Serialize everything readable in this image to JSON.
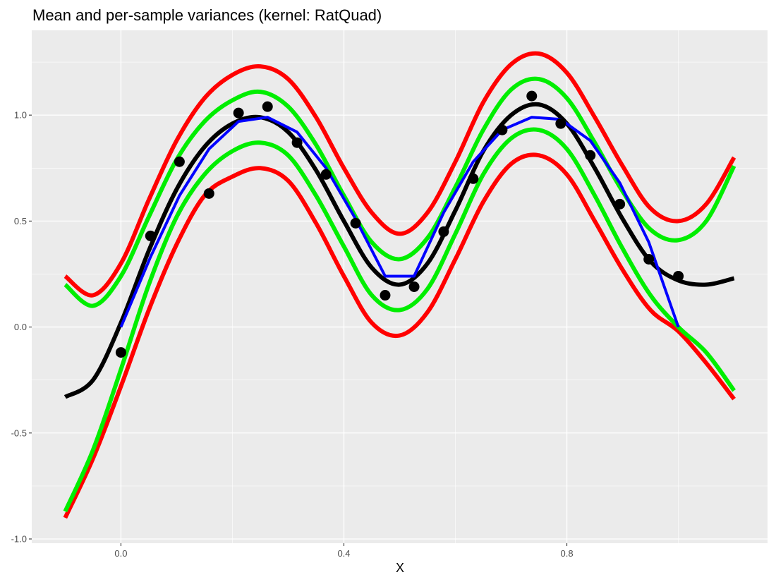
{
  "chart_data": {
    "type": "line",
    "title": "Mean and per-sample variances (kernel: RatQuad)",
    "xlabel": "X",
    "ylabel": "",
    "xlim": [
      -0.16,
      1.16
    ],
    "ylim": [
      -1.02,
      1.4
    ],
    "x_ticks": [
      0.0,
      0.4,
      0.8
    ],
    "x_tick_labels": [
      "0.0",
      "0.4",
      "0.8"
    ],
    "y_ticks": [
      -1.0,
      -0.5,
      0.0,
      0.5,
      1.0
    ],
    "y_tick_labels": [
      "-1.0",
      "-0.5",
      "0.0",
      "0.5",
      "1.0"
    ],
    "background": "#ebebeb",
    "grid": true,
    "series": [
      {
        "color": "#ff0000",
        "x": [
          -0.1,
          -0.05,
          0.0,
          0.05,
          0.1,
          0.15,
          0.2,
          0.25,
          0.3,
          0.35,
          0.4,
          0.45,
          0.5,
          0.55,
          0.6,
          0.65,
          0.7,
          0.75,
          0.8,
          0.85,
          0.9,
          0.95,
          1.0,
          1.05,
          1.1
        ],
        "y": [
          0.24,
          0.15,
          0.3,
          0.6,
          0.88,
          1.08,
          1.19,
          1.23,
          1.17,
          0.99,
          0.75,
          0.54,
          0.44,
          0.54,
          0.78,
          1.06,
          1.24,
          1.29,
          1.2,
          0.99,
          0.76,
          0.56,
          0.5,
          0.58,
          0.8
        ]
      },
      {
        "color": "#ff0000",
        "x": [
          -0.1,
          -0.05,
          0.0,
          0.05,
          0.1,
          0.15,
          0.2,
          0.25,
          0.3,
          0.35,
          0.4,
          0.45,
          0.5,
          0.55,
          0.6,
          0.65,
          0.7,
          0.75,
          0.8,
          0.85,
          0.9,
          0.95,
          1.0,
          1.05,
          1.1
        ],
        "y": [
          -0.9,
          -0.62,
          -0.28,
          0.08,
          0.39,
          0.62,
          0.71,
          0.75,
          0.69,
          0.49,
          0.24,
          0.02,
          -0.04,
          0.07,
          0.32,
          0.59,
          0.77,
          0.81,
          0.72,
          0.5,
          0.27,
          0.08,
          -0.02,
          -0.17,
          -0.34
        ]
      },
      {
        "color": "#00ee00",
        "x": [
          -0.1,
          -0.05,
          0.0,
          0.05,
          0.1,
          0.15,
          0.2,
          0.25,
          0.3,
          0.35,
          0.4,
          0.45,
          0.5,
          0.55,
          0.6,
          0.65,
          0.7,
          0.75,
          0.8,
          0.85,
          0.9,
          0.95,
          1.0,
          1.05,
          1.1
        ],
        "y": [
          0.2,
          0.1,
          0.24,
          0.52,
          0.79,
          0.97,
          1.07,
          1.11,
          1.04,
          0.86,
          0.62,
          0.4,
          0.32,
          0.42,
          0.66,
          0.93,
          1.12,
          1.17,
          1.08,
          0.87,
          0.64,
          0.46,
          0.41,
          0.5,
          0.76
        ]
      },
      {
        "color": "#00ee00",
        "x": [
          -0.1,
          -0.05,
          0.0,
          0.05,
          0.1,
          0.15,
          0.2,
          0.25,
          0.3,
          0.35,
          0.4,
          0.45,
          0.5,
          0.55,
          0.6,
          0.65,
          0.7,
          0.75,
          0.8,
          0.85,
          0.9,
          0.95,
          1.0,
          1.05,
          1.1
        ],
        "y": [
          -0.87,
          -0.58,
          -0.2,
          0.2,
          0.52,
          0.72,
          0.83,
          0.87,
          0.81,
          0.62,
          0.38,
          0.15,
          0.08,
          0.18,
          0.44,
          0.72,
          0.89,
          0.93,
          0.84,
          0.62,
          0.37,
          0.15,
          0.0,
          -0.12,
          -0.3
        ]
      },
      {
        "color": "#000000",
        "x": [
          -0.1,
          -0.05,
          0.0,
          0.05,
          0.1,
          0.15,
          0.2,
          0.25,
          0.3,
          0.35,
          0.4,
          0.45,
          0.5,
          0.55,
          0.6,
          0.65,
          0.7,
          0.75,
          0.8,
          0.85,
          0.9,
          0.95,
          1.0,
          1.05,
          1.1
        ],
        "y": [
          -0.33,
          -0.25,
          0.02,
          0.36,
          0.65,
          0.85,
          0.96,
          0.99,
          0.92,
          0.74,
          0.5,
          0.28,
          0.2,
          0.3,
          0.55,
          0.83,
          1.0,
          1.05,
          0.96,
          0.75,
          0.51,
          0.31,
          0.22,
          0.2,
          0.23
        ]
      },
      {
        "color": "#0000ff",
        "x": [
          0.0,
          0.053,
          0.105,
          0.158,
          0.211,
          0.263,
          0.316,
          0.368,
          0.421,
          0.474,
          0.526,
          0.579,
          0.632,
          0.684,
          0.737,
          0.789,
          0.842,
          0.895,
          0.947,
          1.0
        ],
        "y": [
          0.0,
          0.33,
          0.62,
          0.84,
          0.97,
          0.99,
          0.92,
          0.75,
          0.51,
          0.24,
          0.24,
          0.54,
          0.78,
          0.93,
          0.99,
          0.98,
          0.88,
          0.68,
          0.4,
          0.0
        ]
      }
    ],
    "points": {
      "color": "#000000",
      "x": [
        0.0,
        0.053,
        0.105,
        0.158,
        0.211,
        0.263,
        0.316,
        0.368,
        0.421,
        0.474,
        0.526,
        0.579,
        0.632,
        0.684,
        0.737,
        0.789,
        0.842,
        0.895,
        0.947,
        1.0
      ],
      "y": [
        -0.12,
        0.43,
        0.78,
        0.63,
        1.01,
        1.04,
        0.87,
        0.72,
        0.49,
        0.15,
        0.19,
        0.45,
        0.7,
        0.93,
        1.09,
        0.96,
        0.81,
        0.58,
        0.32,
        0.24
      ]
    }
  }
}
